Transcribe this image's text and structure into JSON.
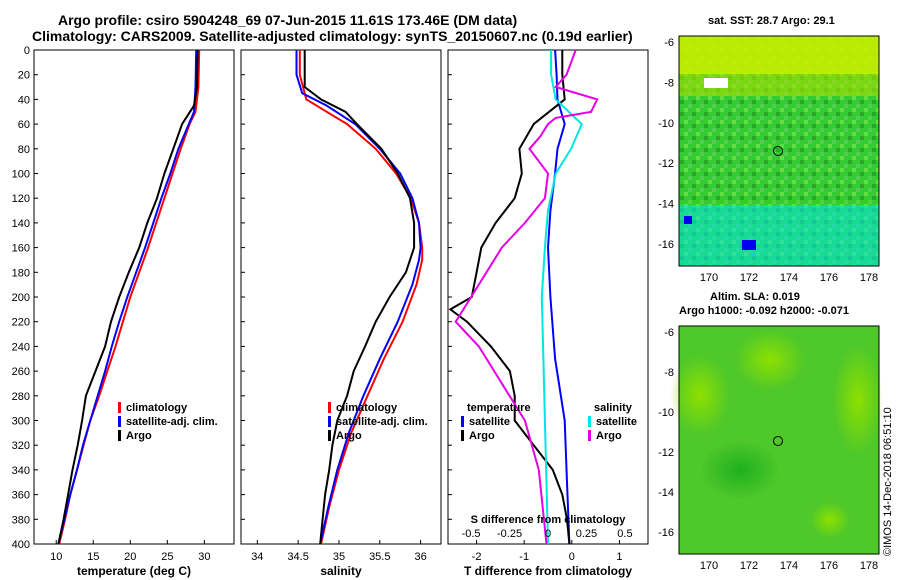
{
  "header": {
    "title_line1": "Argo profile: csiro 5904248_69 07-Jun-2015 11.61S 173.46E (DM data)",
    "title_line2": "Climatology: CARS2009. Satellite-adjusted climatology: synTS_20150607.nc (0.19d earlier)"
  },
  "map_panels": {
    "sst_title": "sat. SST: 28.7 Argo: 29.1",
    "sla_title1": "Altim. SLA: 0.019",
    "sla_title2": "Argo h1000: -0.092 h2000: -0.071",
    "lon_ticks": [
      "170",
      "172",
      "174",
      "176",
      "178"
    ],
    "lat_ticks": [
      "-6",
      "-8",
      "-10",
      "-12",
      "-14",
      "-16"
    ],
    "argo_lon": 173.46,
    "argo_lat": -11.61
  },
  "credit": "©IMOS 14-Dec-2018 06:51:10",
  "colors": {
    "climatology": "#ff0000",
    "satellite": "#0000ff",
    "argo": "#000000",
    "sal_satellite": "#00e5e5",
    "sal_diff": "#e600e6"
  },
  "chart_data": [
    {
      "type": "line",
      "xlabel": "temperature (deg C)",
      "ylabel": "",
      "xlim": [
        7,
        34
      ],
      "ylim": [
        400,
        0
      ],
      "xticks": [
        10,
        15,
        20,
        25,
        30
      ],
      "yticks": [
        0,
        20,
        40,
        60,
        80,
        100,
        120,
        140,
        160,
        180,
        200,
        220,
        240,
        260,
        280,
        300,
        320,
        340,
        360,
        380,
        400
      ],
      "legend": [
        "climatology",
        "satellite-adj. clim.",
        "Argo"
      ],
      "series": [
        {
          "name": "climatology",
          "depth": [
            0,
            30,
            50,
            60,
            80,
            100,
            120,
            140,
            160,
            180,
            200,
            220,
            240,
            260,
            280,
            300,
            320,
            340,
            360,
            380,
            400
          ],
          "values": [
            29.3,
            29.2,
            28.8,
            28.0,
            26.8,
            25.7,
            24.6,
            23.5,
            22.4,
            21.2,
            20.0,
            19.0,
            18.0,
            16.9,
            15.8,
            14.6,
            13.7,
            12.8,
            11.9,
            11.2,
            10.4
          ]
        },
        {
          "name": "satellite-adj. clim.",
          "depth": [
            0,
            30,
            50,
            60,
            80,
            100,
            120,
            140,
            160,
            180,
            200,
            220,
            240,
            260,
            280,
            300,
            320,
            340,
            360,
            380,
            400
          ],
          "values": [
            28.9,
            28.8,
            28.6,
            27.9,
            26.5,
            25.4,
            24.2,
            23.1,
            22.0,
            20.8,
            19.6,
            18.5,
            17.5,
            16.6,
            15.6,
            14.6,
            13.6,
            12.8,
            11.9,
            11.1,
            10.3
          ]
        },
        {
          "name": "Argo",
          "depth": [
            0,
            30,
            45,
            60,
            80,
            100,
            120,
            140,
            160,
            180,
            200,
            220,
            240,
            260,
            280,
            300,
            320,
            340,
            360,
            380,
            400
          ],
          "values": [
            29.1,
            29.0,
            28.6,
            27.0,
            25.8,
            24.6,
            23.6,
            22.3,
            21.2,
            19.8,
            18.5,
            17.4,
            16.6,
            15.3,
            14.0,
            13.5,
            12.9,
            12.2,
            11.6,
            11.0,
            10.3
          ]
        }
      ]
    },
    {
      "type": "line",
      "xlabel": "salinity",
      "ylabel": "",
      "xlim": [
        33.8,
        36.25
      ],
      "ylim": [
        400,
        0
      ],
      "xticks": [
        34,
        34.5,
        35,
        35.5,
        36
      ],
      "legend": [
        "climatology",
        "satellite-adj. clim.",
        "Argo"
      ],
      "series": [
        {
          "name": "climatology",
          "depth": [
            0,
            20,
            40,
            50,
            60,
            80,
            100,
            120,
            140,
            160,
            170,
            190,
            220,
            250,
            280,
            310,
            340,
            370,
            400
          ],
          "values": [
            34.52,
            34.52,
            34.6,
            34.85,
            35.1,
            35.45,
            35.7,
            35.88,
            35.98,
            36.02,
            36.02,
            35.95,
            35.78,
            35.55,
            35.35,
            35.15,
            35.0,
            34.88,
            34.78
          ]
        },
        {
          "name": "satellite-adj. clim.",
          "depth": [
            0,
            20,
            35,
            45,
            60,
            80,
            100,
            120,
            140,
            160,
            170,
            190,
            220,
            250,
            280,
            310,
            340,
            370,
            400
          ],
          "values": [
            34.48,
            34.48,
            34.55,
            34.85,
            35.2,
            35.5,
            35.75,
            35.9,
            35.98,
            36.0,
            35.98,
            35.9,
            35.72,
            35.5,
            35.3,
            35.12,
            34.98,
            34.87,
            34.77
          ]
        },
        {
          "name": "Argo",
          "depth": [
            0,
            10,
            30,
            40,
            50,
            60,
            80,
            100,
            120,
            140,
            160,
            180,
            200,
            220,
            240,
            260,
            280,
            300,
            320,
            340,
            360,
            380,
            400
          ],
          "values": [
            34.58,
            34.58,
            34.58,
            34.78,
            35.08,
            35.22,
            35.52,
            35.72,
            35.87,
            35.92,
            35.92,
            35.82,
            35.62,
            35.45,
            35.32,
            35.18,
            35.1,
            34.98,
            34.92,
            34.88,
            34.83,
            34.8,
            34.77
          ]
        }
      ]
    },
    {
      "type": "line",
      "xlabel": "T difference from climatology",
      "xlabel_top": "S difference from climatology",
      "ylabel": "",
      "xlim": [
        -2.6,
        1.6
      ],
      "ylim": [
        400,
        0
      ],
      "xticks": [
        -2,
        -1,
        0,
        1
      ],
      "xticks_s": [
        "-0.5",
        "-0.25",
        "0",
        "0.25",
        "0.5"
      ],
      "legend_left_title": "temperature",
      "legend_left": [
        "satellite",
        "Argo"
      ],
      "legend_right_title": "salinity",
      "legend_right": [
        "satellite",
        "Argo"
      ],
      "series": [
        {
          "name": "temperature satellite",
          "depth": [
            0,
            20,
            40,
            60,
            80,
            100,
            130,
            160,
            200,
            250,
            300,
            350,
            400
          ],
          "values": [
            -0.35,
            -0.32,
            -0.3,
            -0.15,
            -0.3,
            -0.35,
            -0.45,
            -0.5,
            -0.45,
            -0.35,
            -0.15,
            -0.1,
            -0.05
          ]
        },
        {
          "name": "temperature Argo",
          "depth": [
            0,
            20,
            40,
            60,
            80,
            100,
            120,
            140,
            160,
            180,
            200,
            210,
            220,
            240,
            260,
            280,
            300,
            320,
            340,
            360,
            380,
            400
          ],
          "values": [
            -0.2,
            -0.2,
            -0.15,
            -0.8,
            -1.1,
            -1.05,
            -1.2,
            -1.6,
            -1.9,
            -2.0,
            -2.1,
            -2.55,
            -2.2,
            -1.7,
            -1.3,
            -1.2,
            -1.2,
            -0.8,
            -0.4,
            -0.2,
            -0.1,
            -0.05
          ]
        },
        {
          "name": "salinity satellite",
          "depth": [
            0,
            20,
            40,
            60,
            80,
            100,
            130,
            160,
            200,
            250,
            300,
            350,
            400
          ],
          "values": [
            0.02,
            0.02,
            0.05,
            0.22,
            0.15,
            0.05,
            0.0,
            -0.02,
            -0.04,
            -0.03,
            -0.02,
            -0.01,
            0.0
          ]
        },
        {
          "name": "salinity Argo",
          "depth": [
            0,
            20,
            30,
            40,
            50,
            55,
            60,
            70,
            80,
            100,
            120,
            140,
            160,
            180,
            200,
            220,
            240,
            260,
            280,
            300,
            340,
            400
          ],
          "values": [
            0.18,
            0.12,
            0.05,
            0.32,
            0.28,
            0.05,
            0.0,
            -0.05,
            -0.12,
            0.0,
            -0.02,
            -0.15,
            -0.3,
            -0.4,
            -0.5,
            -0.6,
            -0.45,
            -0.35,
            -0.25,
            -0.15,
            -0.06,
            -0.01
          ]
        }
      ]
    }
  ]
}
